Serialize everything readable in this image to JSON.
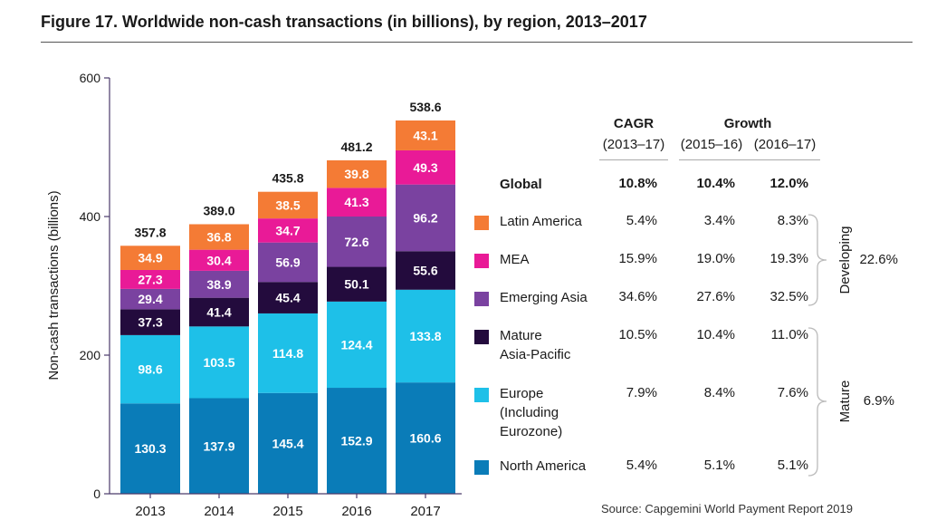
{
  "title": "Figure 17. Worldwide non-cash transactions (in billions), by region, 2013–2017",
  "source": "Source: Capgemini World Payment Report 2019",
  "chart_data": {
    "type": "bar",
    "stacked": true,
    "title": "Figure 17. Worldwide non-cash transactions (in billions), by region, 2013–2017",
    "ylabel": "Non-cash transactions (billions)",
    "xlabel": "",
    "ylim": [
      0,
      600
    ],
    "yticks": [
      "0",
      "200",
      "400",
      "600"
    ],
    "categories": [
      "2013",
      "2014",
      "2015",
      "2016",
      "2017"
    ],
    "totals": [
      "357.8",
      "389.0",
      "435.8",
      "481.2",
      "538.6"
    ],
    "series": [
      {
        "name": "North America",
        "color": "#0a7cb8",
        "values": [
          130.3,
          137.9,
          145.4,
          152.9,
          160.6
        ],
        "labels": [
          "130.3",
          "137.9",
          "145.4",
          "152.9",
          "160.6"
        ]
      },
      {
        "name": "Europe (Including Eurozone)",
        "color": "#1ec0e8",
        "values": [
          98.6,
          103.5,
          114.8,
          124.4,
          133.8
        ],
        "labels": [
          "98.6",
          "103.5",
          "114.8",
          "124.4",
          "133.8"
        ]
      },
      {
        "name": "Mature Asia-Pacific",
        "color": "#230b3d",
        "values": [
          37.3,
          41.4,
          45.4,
          50.1,
          55.6
        ],
        "labels": [
          "37.3",
          "41.4",
          "45.4",
          "50.1",
          "55.6"
        ]
      },
      {
        "name": "Emerging Asia",
        "color": "#7a42a0",
        "values": [
          29.4,
          38.9,
          56.9,
          72.6,
          96.2
        ],
        "labels": [
          "29.4",
          "38.9",
          "56.9",
          "72.6",
          "96.2"
        ]
      },
      {
        "name": "MEA",
        "color": "#e91a97",
        "values": [
          27.3,
          30.4,
          34.7,
          41.3,
          49.3
        ],
        "labels": [
          "27.3",
          "30.4",
          "34.7",
          "41.3",
          "49.3"
        ]
      },
      {
        "name": "Latin America",
        "color": "#f47b35",
        "values": [
          34.9,
          36.8,
          38.5,
          39.8,
          43.1
        ],
        "labels": [
          "34.9",
          "36.8",
          "38.5",
          "39.8",
          "43.1"
        ]
      }
    ],
    "grid": false,
    "legend_position": "right"
  },
  "table": {
    "cagr_header": "CAGR",
    "cagr_period": "(2013–17)",
    "growth_header": "Growth",
    "growth_period_1": "(2015–16)",
    "growth_period_2": "(2016–17)",
    "rows": [
      {
        "label_lines": [
          "Global"
        ],
        "cagr": "10.8%",
        "g1": "10.4%",
        "g2": "12.0%",
        "bold": true,
        "color": ""
      },
      {
        "label_lines": [
          "Latin America"
        ],
        "cagr": "5.4%",
        "g1": "3.4%",
        "g2": "8.3%",
        "bold": false,
        "color": "#f47b35"
      },
      {
        "label_lines": [
          "MEA"
        ],
        "cagr": "15.9%",
        "g1": "19.0%",
        "g2": "19.3%",
        "bold": false,
        "color": "#e91a97"
      },
      {
        "label_lines": [
          "Emerging Asia"
        ],
        "cagr": "34.6%",
        "g1": "27.6%",
        "g2": "32.5%",
        "bold": false,
        "color": "#7a42a0"
      },
      {
        "label_lines": [
          "Mature",
          "Asia-Pacific"
        ],
        "cagr": "10.5%",
        "g1": "10.4%",
        "g2": "11.0%",
        "bold": false,
        "color": "#230b3d"
      },
      {
        "label_lines": [
          "Europe",
          "(Including",
          "Eurozone)"
        ],
        "cagr": "7.9%",
        "g1": "8.4%",
        "g2": "7.6%",
        "bold": false,
        "color": "#1ec0e8"
      },
      {
        "label_lines": [
          "North America"
        ],
        "cagr": "5.4%",
        "g1": "5.1%",
        "g2": "5.1%",
        "bold": false,
        "color": "#0a7cb8"
      }
    ],
    "groups": [
      {
        "name": "Developing",
        "cagr": "22.6%"
      },
      {
        "name": "Mature",
        "cagr": "6.9%"
      }
    ]
  }
}
